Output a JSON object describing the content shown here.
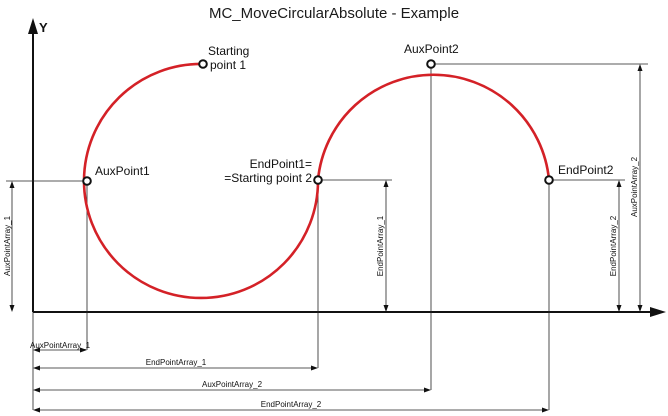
{
  "title": "MC_MoveCircularAbsolute - Example",
  "axes": {
    "y_label": "Y"
  },
  "points": {
    "start1_line1": "Starting",
    "start1_line2": "point 1",
    "aux1": "AuxPoint1",
    "end1_line1": "EndPoint1=",
    "end1_line2": "=Starting point 2",
    "aux2": "AuxPoint2",
    "end2": "EndPoint2"
  },
  "dimensions": {
    "aux_point_array_1": "AuxPointArray_1",
    "end_point_array_1": "EndPointArray_1",
    "aux_point_array_2": "AuxPointArray_2",
    "end_point_array_2": "EndPointArray_2"
  },
  "colors": {
    "arc": "#d42127",
    "lines": "#111111"
  }
}
